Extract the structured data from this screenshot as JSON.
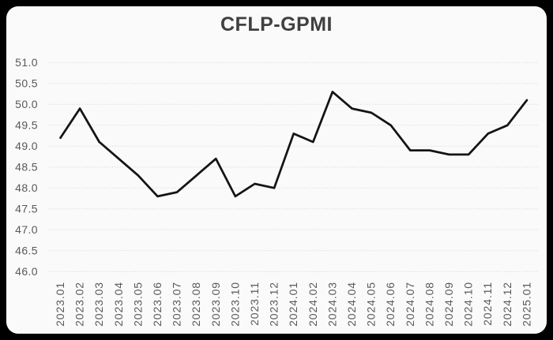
{
  "page": {
    "title": "CFLP-GPMI"
  },
  "chart_data": {
    "type": "line",
    "title": "CFLP-GPMI",
    "categories": [
      "2023.01",
      "2023.02",
      "2023.03",
      "2023.04",
      "2023.05",
      "2023.06",
      "2023.07",
      "2023.08",
      "2023.09",
      "2023.10",
      "2023.11",
      "2023.12",
      "2024.01",
      "2024.02",
      "2024.03",
      "2024.04",
      "2024.05",
      "2024.06",
      "2024.07",
      "2024.08",
      "2024.09",
      "2024.10",
      "2024.11",
      "2024.12",
      "2025.01"
    ],
    "values": [
      49.2,
      49.9,
      49.1,
      48.7,
      48.3,
      47.8,
      47.9,
      48.3,
      48.7,
      47.8,
      48.1,
      48.0,
      49.3,
      49.1,
      50.3,
      49.9,
      49.8,
      49.5,
      48.9,
      48.9,
      48.8,
      48.8,
      49.3,
      49.5,
      50.1
    ],
    "xlabel": "",
    "ylabel": "",
    "ylim": [
      46.0,
      51.0
    ],
    "ytick_step": 0.5,
    "ytick_labels": [
      "46.0",
      "46.5",
      "47.0",
      "47.5",
      "48.0",
      "48.5",
      "49.0",
      "49.5",
      "50.0",
      "50.5",
      "51.0"
    ],
    "grid": "horizontal-dotted",
    "legend_position": "none"
  },
  "colors": {
    "frame_background": "#000000",
    "card_background": "#fafafa",
    "title_text": "#404040",
    "tick_text": "#595959",
    "gridline": "#c6d6d6",
    "series_line": "#141414"
  }
}
